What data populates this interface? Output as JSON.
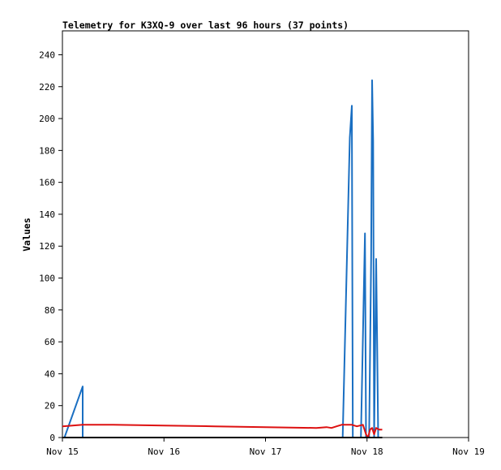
{
  "chart_data": {
    "type": "line",
    "title": "Telemetry for K3XQ-9 over last 96 hours (37 points)",
    "xlabel": "",
    "ylabel": "Values",
    "x_ticks": [
      {
        "day": 0,
        "label": "Nov 15"
      },
      {
        "day": 1,
        "label": "Nov 16"
      },
      {
        "day": 2,
        "label": "Nov 17"
      },
      {
        "day": 3,
        "label": "Nov 18"
      },
      {
        "day": 4,
        "label": "Nov 19"
      }
    ],
    "xlim_days": [
      0,
      4
    ],
    "y_ticks": [
      0,
      20,
      40,
      60,
      80,
      100,
      120,
      140,
      160,
      180,
      200,
      220,
      240
    ],
    "ylim": [
      0,
      255
    ],
    "grid": false,
    "series": [
      {
        "color": "#1a6fc2",
        "points": [
          [
            0.02,
            0
          ],
          [
            0.2,
            32
          ],
          [
            0.2,
            0
          ],
          [
            2.76,
            0
          ],
          [
            2.83,
            188
          ],
          [
            2.85,
            208
          ],
          [
            2.86,
            0
          ],
          [
            2.94,
            0
          ],
          [
            2.98,
            128
          ],
          [
            2.99,
            0
          ],
          [
            3.02,
            0
          ],
          [
            3.04,
            112
          ],
          [
            3.05,
            224
          ],
          [
            3.06,
            186
          ],
          [
            3.07,
            0
          ],
          [
            3.09,
            112
          ],
          [
            3.1,
            56
          ],
          [
            3.11,
            0
          ]
        ]
      },
      {
        "color": "#dd1111",
        "points": [
          [
            0.0,
            7
          ],
          [
            0.2,
            8
          ],
          [
            0.5,
            8
          ],
          [
            1.0,
            7.5
          ],
          [
            1.5,
            7
          ],
          [
            2.0,
            6.5
          ],
          [
            2.5,
            6
          ],
          [
            2.6,
            6.5
          ],
          [
            2.65,
            6
          ],
          [
            2.7,
            7
          ],
          [
            2.75,
            8
          ],
          [
            2.8,
            8
          ],
          [
            2.85,
            8
          ],
          [
            2.9,
            7
          ],
          [
            2.96,
            8
          ],
          [
            2.99,
            2
          ],
          [
            3.01,
            0
          ],
          [
            3.03,
            5
          ],
          [
            3.05,
            6
          ],
          [
            3.07,
            2
          ],
          [
            3.09,
            6
          ],
          [
            3.12,
            5
          ],
          [
            3.15,
            5
          ]
        ]
      },
      {
        "color": "#000000",
        "points": [
          [
            0.0,
            0
          ],
          [
            3.15,
            0
          ]
        ]
      }
    ]
  }
}
